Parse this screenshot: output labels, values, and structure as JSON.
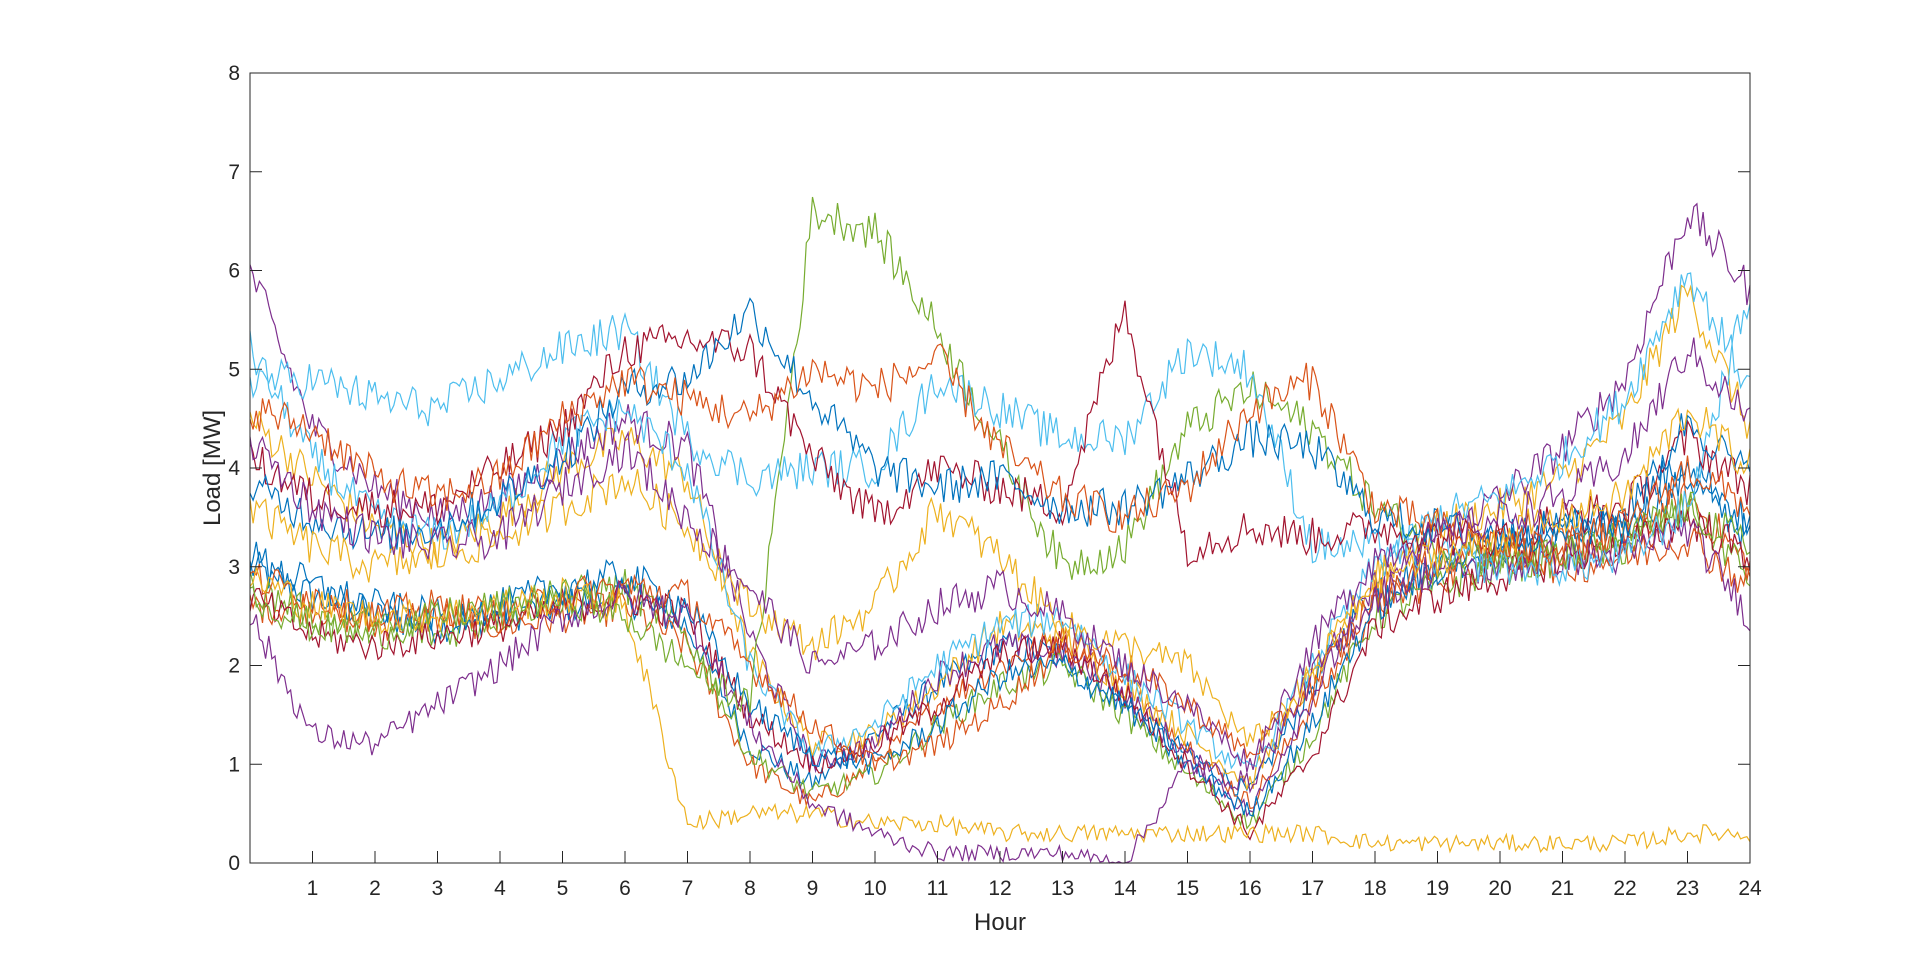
{
  "chart_data": {
    "type": "line",
    "title": "",
    "xlabel": "Hour",
    "ylabel": "Load [MW]",
    "xlim": [
      0,
      24
    ],
    "ylim": [
      0,
      8
    ],
    "x_ticks": [
      "1",
      "2",
      "3",
      "4",
      "5",
      "6",
      "7",
      "8",
      "9",
      "10",
      "11",
      "12",
      "13",
      "14",
      "15",
      "16",
      "17",
      "18",
      "19",
      "20",
      "21",
      "22",
      "23",
      "24"
    ],
    "y_ticks": [
      "0",
      "1",
      "2",
      "3",
      "4",
      "5",
      "6",
      "7",
      "8"
    ],
    "grid": false,
    "legend": "none",
    "colors": [
      "#0072BD",
      "#D95319",
      "#EDB120",
      "#7E2F8E",
      "#77AC30",
      "#4DBEEE",
      "#A2142F"
    ],
    "x": [
      0,
      1,
      2,
      3,
      4,
      5,
      6,
      7,
      8,
      9,
      10,
      11,
      12,
      13,
      14,
      15,
      16,
      17,
      18,
      19,
      20,
      21,
      22,
      23,
      24
    ],
    "series": [
      {
        "values": [
          3.0,
          2.7,
          2.5,
          2.4,
          2.5,
          2.6,
          2.7,
          2.4,
          1.2,
          0.8,
          1.3,
          1.8,
          2.2,
          2.1,
          1.6,
          1.1,
          0.7,
          1.8,
          2.8,
          3.0,
          3.2,
          3.3,
          3.4,
          3.9,
          3.3
        ]
      },
      {
        "values": [
          2.6,
          2.6,
          2.4,
          2.5,
          2.4,
          2.5,
          2.6,
          2.2,
          1.0,
          0.6,
          1.0,
          1.6,
          2.0,
          2.3,
          1.8,
          1.2,
          0.6,
          1.6,
          2.6,
          2.9,
          3.1,
          3.2,
          3.3,
          3.7,
          3.0
        ]
      },
      {
        "values": [
          4.5,
          3.9,
          3.4,
          3.2,
          3.5,
          4.0,
          4.3,
          3.9,
          2.1,
          1.2,
          1.3,
          1.8,
          2.4,
          2.3,
          1.8,
          1.3,
          0.8,
          1.9,
          2.9,
          3.4,
          3.6,
          3.9,
          4.5,
          5.8,
          4.4
        ]
      },
      {
        "values": [
          6.0,
          4.4,
          3.8,
          3.5,
          3.7,
          4.1,
          4.5,
          4.2,
          2.3,
          1.0,
          1.2,
          1.9,
          2.2,
          2.1,
          1.7,
          1.1,
          0.5,
          1.7,
          2.8,
          3.3,
          3.7,
          4.2,
          4.9,
          6.6,
          5.8
        ]
      },
      {
        "values": [
          2.8,
          2.5,
          2.4,
          2.3,
          2.5,
          2.7,
          2.8,
          2.3,
          1.1,
          0.7,
          0.9,
          1.4,
          1.8,
          2.0,
          1.5,
          0.9,
          0.4,
          1.3,
          2.5,
          2.8,
          3.0,
          3.1,
          3.2,
          3.6,
          2.9
        ]
      },
      {
        "values": [
          5.2,
          4.1,
          3.5,
          3.3,
          3.6,
          4.3,
          4.6,
          4.0,
          2.0,
          1.1,
          1.4,
          2.0,
          2.4,
          2.5,
          1.9,
          1.4,
          0.9,
          2.0,
          3.0,
          3.5,
          3.7,
          4.1,
          4.7,
          6.0,
          4.8
        ]
      },
      {
        "values": [
          2.7,
          2.3,
          2.2,
          2.3,
          2.4,
          2.6,
          2.7,
          2.5,
          1.5,
          1.0,
          1.2,
          1.6,
          2.1,
          2.2,
          1.7,
          1.0,
          0.3,
          1.1,
          2.4,
          2.7,
          2.9,
          3.1,
          3.2,
          3.5,
          3.1
        ]
      },
      {
        "values": [
          3.1,
          2.8,
          2.6,
          2.5,
          2.6,
          2.8,
          2.9,
          2.6,
          1.6,
          1.1,
          1.0,
          1.4,
          1.9,
          2.0,
          1.6,
          1.0,
          0.5,
          1.4,
          2.6,
          3.0,
          3.3,
          3.4,
          3.6,
          4.1,
          3.4
        ]
      },
      {
        "values": [
          2.9,
          2.7,
          2.5,
          2.6,
          2.5,
          2.7,
          2.8,
          2.7,
          2.0,
          1.4,
          1.0,
          1.2,
          1.6,
          2.2,
          2.0,
          1.6,
          1.1,
          1.8,
          2.7,
          3.1,
          3.2,
          3.0,
          3.1,
          3.3,
          2.8
        ]
      },
      {
        "values": [
          2.9,
          2.6,
          2.5,
          2.5,
          2.6,
          2.7,
          2.6,
          0.4,
          0.5,
          0.5,
          0.4,
          0.4,
          0.3,
          0.3,
          0.3,
          0.3,
          0.3,
          0.3,
          0.2,
          0.2,
          0.2,
          0.2,
          0.2,
          0.3,
          0.3
        ]
      },
      {
        "values": [
          2.5,
          1.3,
          1.2,
          1.6,
          2.0,
          2.5,
          2.7,
          2.5,
          1.4,
          0.6,
          0.3,
          0.1,
          0.1,
          0.1,
          0.0,
          1.0,
          0.8,
          1.9,
          2.7,
          3.0,
          3.0,
          3.1,
          3.1,
          3.4,
          2.5
        ]
      },
      {
        "values": [
          2.7,
          2.4,
          2.3,
          2.5,
          2.6,
          2.7,
          2.5,
          2.0,
          1.6,
          6.6,
          6.4,
          5.4,
          4.2,
          3.0,
          3.2,
          4.4,
          4.8,
          4.4,
          3.6,
          3.2,
          3.1,
          3.1,
          3.3,
          3.6,
          3.2
        ]
      },
      {
        "values": [
          4.9,
          4.9,
          4.7,
          4.6,
          4.9,
          5.2,
          5.4,
          4.3,
          3.9,
          4.0,
          4.0,
          4.9,
          4.6,
          4.3,
          4.3,
          5.2,
          5.0,
          3.2,
          3.2,
          3.1,
          3.0,
          3.0,
          3.1,
          3.6,
          5.8
        ]
      },
      {
        "values": [
          4.1,
          3.7,
          3.6,
          3.6,
          4.0,
          4.4,
          5.2,
          5.3,
          5.2,
          4.1,
          3.5,
          4.0,
          3.8,
          3.6,
          5.6,
          3.2,
          3.4,
          3.3,
          3.4,
          3.3,
          3.3,
          3.5,
          3.6,
          4.3,
          3.8
        ]
      },
      {
        "values": [
          3.8,
          3.5,
          3.3,
          3.4,
          3.7,
          4.1,
          4.8,
          4.9,
          5.6,
          4.7,
          4.0,
          3.8,
          3.9,
          3.6,
          3.6,
          3.9,
          4.3,
          4.2,
          3.5,
          3.4,
          3.3,
          3.4,
          3.4,
          4.5,
          3.9
        ]
      },
      {
        "values": [
          4.6,
          4.4,
          3.9,
          3.7,
          3.9,
          4.5,
          4.9,
          4.7,
          4.5,
          5.0,
          4.8,
          5.1,
          4.2,
          3.7,
          3.5,
          3.8,
          4.6,
          4.9,
          3.6,
          3.4,
          3.2,
          3.2,
          3.4,
          4.0,
          3.6
        ]
      },
      {
        "values": [
          3.6,
          3.2,
          3.0,
          3.1,
          3.3,
          3.6,
          3.9,
          3.4,
          2.6,
          2.2,
          2.6,
          3.6,
          3.1,
          2.4,
          2.2,
          2.0,
          1.2,
          1.9,
          2.9,
          3.1,
          3.3,
          3.5,
          3.7,
          4.6,
          4.0
        ]
      },
      {
        "values": [
          4.3,
          3.6,
          3.3,
          3.2,
          3.3,
          3.8,
          4.2,
          3.5,
          2.8,
          2.0,
          2.2,
          2.6,
          2.8,
          2.5,
          2.0,
          1.6,
          1.0,
          2.2,
          3.1,
          3.3,
          3.5,
          3.7,
          4.1,
          5.2,
          4.5
        ]
      }
    ]
  }
}
